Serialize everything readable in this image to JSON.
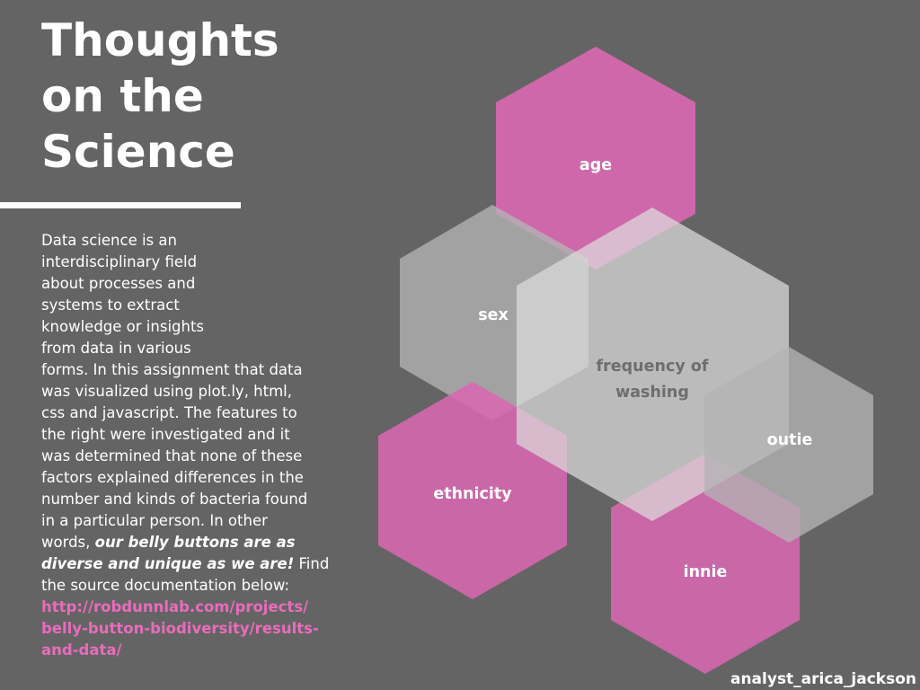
{
  "title": {
    "lines": [
      "Thoughts",
      "on the",
      "Science"
    ]
  },
  "body": {
    "lines": [
      "Data science is an",
      "interdisciplinary field",
      "about processes and",
      "systems to extract",
      "knowledge or insights",
      "from data in various",
      "forms. In this assignment that data",
      "was visualized using plot.ly, html,",
      "css and javascript.  The features to",
      "the right were investigated and it",
      "was determined that none of these",
      "factors explained differences in the",
      "number and kinds of bacteria found",
      "in a particular person. In other"
    ],
    "line14_prefix": "words, ",
    "emphasis_part1": "our belly buttons are as",
    "emphasis_part2": "diverse and unique as we are!",
    "after_emphasis": " Find",
    "last_line": "the source documentation below:",
    "link_lines": [
      "http://robdunnlab.com/projects/",
      "belly-button-biodiversity/results-",
      "and-data/"
    ]
  },
  "hexagons": [
    {
      "label": "age",
      "color": "#d768b0"
    },
    {
      "label": "sex",
      "color": "#b4b4b4"
    },
    {
      "label": "frequency of washing",
      "label_lines": [
        "frequency of",
        "washing"
      ],
      "color": "#dcdcdc"
    },
    {
      "label": "ethnicity",
      "color": "#d768b0"
    },
    {
      "label": "innie",
      "color": "#d768b0"
    },
    {
      "label": "outie",
      "color": "#b4b4b4"
    }
  ],
  "colors": {
    "background": "#646464",
    "pink": "#d768b0",
    "link": "#e86cbb",
    "gray_light": "#dcdcdc",
    "gray_mid": "#b4b4b4",
    "center_text": "#6e6e6e"
  },
  "credit": "analyst_arica_jackson"
}
